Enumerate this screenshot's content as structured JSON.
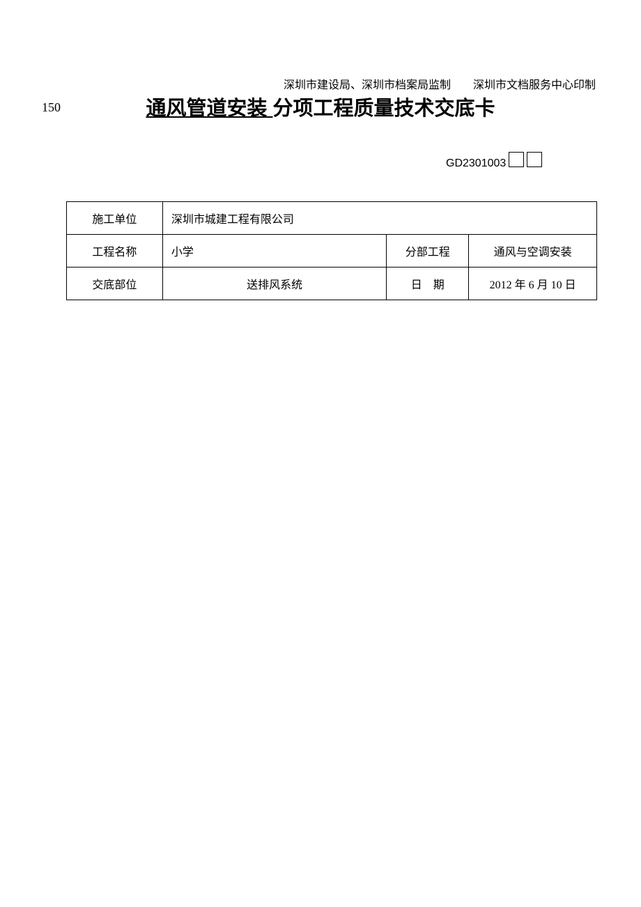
{
  "header": {
    "supervisor": "深圳市建设局、深圳市档案局监制",
    "printer": "深圳市文档服务中心印制"
  },
  "page_number": "150",
  "title": {
    "underlined": "通风管道安装 ",
    "rest": "分项工程质量技术交底卡"
  },
  "form_code": "GD2301003",
  "table": {
    "row1": {
      "label": "施工单位",
      "value": "深圳市城建工程有限公司"
    },
    "row2": {
      "label1": "工程名称",
      "value1": "小学",
      "label2": "分部工程",
      "value2": "通风与空调安装"
    },
    "row3": {
      "label1": "交底部位",
      "value1": "送排风系统",
      "label2": "日　期",
      "value2": "2012 年 6 月 10 日"
    }
  }
}
